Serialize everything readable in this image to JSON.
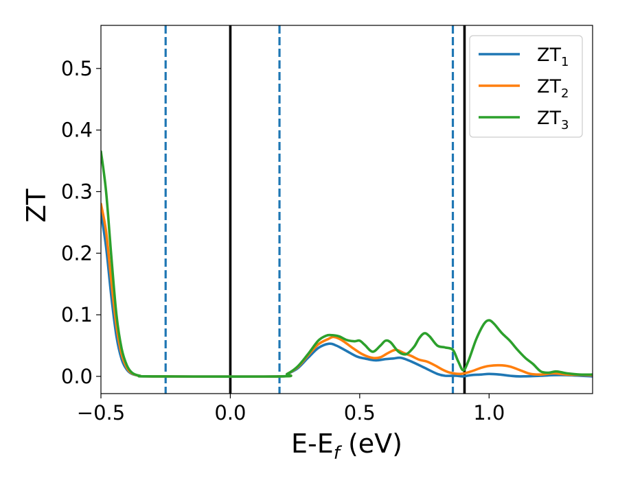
{
  "chart_data": {
    "type": "line",
    "xlabel": {
      "main": "E-E",
      "sub": "f",
      "unit": " (eV)"
    },
    "ylabel": "ZT",
    "xlim": [
      -0.5,
      1.4
    ],
    "ylim": [
      -0.028,
      0.57
    ],
    "xticks": [
      {
        "value": -0.5,
        "label": "−0.5"
      },
      {
        "value": 0.0,
        "label": "0.0"
      },
      {
        "value": 0.5,
        "label": "0.5"
      },
      {
        "value": 1.0,
        "label": "1.0"
      }
    ],
    "yticks": [
      {
        "value": 0.0,
        "label": "0.0"
      },
      {
        "value": 0.1,
        "label": "0.1"
      },
      {
        "value": 0.2,
        "label": "0.2"
      },
      {
        "value": 0.3,
        "label": "0.3"
      },
      {
        "value": 0.4,
        "label": "0.4"
      },
      {
        "value": 0.5,
        "label": "0.5"
      }
    ],
    "grid": false,
    "legend_position": "top-right",
    "vlines": [
      {
        "x": -0.25,
        "style": "dashed",
        "color": "#1f77b4"
      },
      {
        "x": 0.0,
        "style": "solid",
        "color": "#000000"
      },
      {
        "x": 0.19,
        "style": "dashed",
        "color": "#1f77b4"
      },
      {
        "x": 0.86,
        "style": "dashed",
        "color": "#1f77b4"
      },
      {
        "x": 0.905,
        "style": "solid",
        "color": "#000000"
      }
    ],
    "series": [
      {
        "name": "ZT",
        "name_sub": "1",
        "color": "#1f77b4",
        "points": [
          [
            -0.5,
            0.265
          ],
          [
            -0.48,
            0.21
          ],
          [
            -0.46,
            0.13
          ],
          [
            -0.44,
            0.065
          ],
          [
            -0.42,
            0.028
          ],
          [
            -0.4,
            0.011
          ],
          [
            -0.38,
            0.004
          ],
          [
            -0.35,
            0.001
          ],
          [
            -0.3,
            0.0
          ],
          [
            0.19,
            0.0
          ],
          [
            0.22,
            0.004
          ],
          [
            0.26,
            0.013
          ],
          [
            0.3,
            0.03
          ],
          [
            0.34,
            0.046
          ],
          [
            0.38,
            0.053
          ],
          [
            0.41,
            0.05
          ],
          [
            0.45,
            0.041
          ],
          [
            0.49,
            0.032
          ],
          [
            0.52,
            0.029
          ],
          [
            0.56,
            0.026
          ],
          [
            0.6,
            0.028
          ],
          [
            0.63,
            0.029
          ],
          [
            0.66,
            0.03
          ],
          [
            0.7,
            0.024
          ],
          [
            0.75,
            0.014
          ],
          [
            0.8,
            0.004
          ],
          [
            0.83,
            0.001
          ],
          [
            0.87,
            0.001
          ],
          [
            0.9,
            0.0
          ],
          [
            0.93,
            0.002
          ],
          [
            0.97,
            0.003
          ],
          [
            1.0,
            0.004
          ],
          [
            1.04,
            0.003
          ],
          [
            1.08,
            0.001
          ],
          [
            1.12,
            0.0
          ],
          [
            1.2,
            0.001
          ],
          [
            1.25,
            0.002
          ],
          [
            1.3,
            0.002
          ],
          [
            1.4,
            0.0
          ]
        ]
      },
      {
        "name": "ZT",
        "name_sub": "2",
        "color": "#ff7f0e",
        "points": [
          [
            -0.5,
            0.28
          ],
          [
            -0.48,
            0.235
          ],
          [
            -0.46,
            0.155
          ],
          [
            -0.44,
            0.082
          ],
          [
            -0.42,
            0.036
          ],
          [
            -0.4,
            0.014
          ],
          [
            -0.38,
            0.005
          ],
          [
            -0.35,
            0.001
          ],
          [
            -0.3,
            0.0
          ],
          [
            0.19,
            0.0
          ],
          [
            0.22,
            0.004
          ],
          [
            0.26,
            0.015
          ],
          [
            0.3,
            0.034
          ],
          [
            0.34,
            0.052
          ],
          [
            0.38,
            0.061
          ],
          [
            0.4,
            0.064
          ],
          [
            0.43,
            0.059
          ],
          [
            0.47,
            0.047
          ],
          [
            0.51,
            0.036
          ],
          [
            0.55,
            0.03
          ],
          [
            0.58,
            0.031
          ],
          [
            0.61,
            0.038
          ],
          [
            0.64,
            0.043
          ],
          [
            0.67,
            0.038
          ],
          [
            0.7,
            0.033
          ],
          [
            0.73,
            0.027
          ],
          [
            0.76,
            0.024
          ],
          [
            0.79,
            0.018
          ],
          [
            0.82,
            0.011
          ],
          [
            0.85,
            0.006
          ],
          [
            0.89,
            0.004
          ],
          [
            0.93,
            0.008
          ],
          [
            0.97,
            0.014
          ],
          [
            1.0,
            0.017
          ],
          [
            1.04,
            0.018
          ],
          [
            1.08,
            0.016
          ],
          [
            1.12,
            0.01
          ],
          [
            1.16,
            0.004
          ],
          [
            1.2,
            0.003
          ],
          [
            1.25,
            0.005
          ],
          [
            1.3,
            0.003
          ],
          [
            1.4,
            0.002
          ]
        ]
      },
      {
        "name": "ZT",
        "name_sub": "3",
        "color": "#2ca02c",
        "points": [
          [
            -0.5,
            0.365
          ],
          [
            -0.48,
            0.3
          ],
          [
            -0.46,
            0.195
          ],
          [
            -0.44,
            0.1
          ],
          [
            -0.42,
            0.045
          ],
          [
            -0.4,
            0.018
          ],
          [
            -0.38,
            0.006
          ],
          [
            -0.35,
            0.001
          ],
          [
            -0.3,
            0.0
          ],
          [
            0.19,
            0.0
          ],
          [
            0.22,
            0.004
          ],
          [
            0.26,
            0.016
          ],
          [
            0.3,
            0.036
          ],
          [
            0.34,
            0.058
          ],
          [
            0.37,
            0.066
          ],
          [
            0.39,
            0.067
          ],
          [
            0.42,
            0.065
          ],
          [
            0.45,
            0.059
          ],
          [
            0.48,
            0.057
          ],
          [
            0.5,
            0.058
          ],
          [
            0.52,
            0.051
          ],
          [
            0.55,
            0.04
          ],
          [
            0.58,
            0.05
          ],
          [
            0.6,
            0.058
          ],
          [
            0.62,
            0.055
          ],
          [
            0.65,
            0.04
          ],
          [
            0.68,
            0.036
          ],
          [
            0.71,
            0.048
          ],
          [
            0.73,
            0.062
          ],
          [
            0.75,
            0.07
          ],
          [
            0.77,
            0.065
          ],
          [
            0.8,
            0.05
          ],
          [
            0.83,
            0.047
          ],
          [
            0.86,
            0.043
          ],
          [
            0.88,
            0.025
          ],
          [
            0.9,
            0.01
          ],
          [
            0.92,
            0.025
          ],
          [
            0.95,
            0.06
          ],
          [
            0.98,
            0.085
          ],
          [
            1.0,
            0.091
          ],
          [
            1.02,
            0.085
          ],
          [
            1.05,
            0.07
          ],
          [
            1.08,
            0.058
          ],
          [
            1.11,
            0.043
          ],
          [
            1.14,
            0.03
          ],
          [
            1.17,
            0.02
          ],
          [
            1.2,
            0.008
          ],
          [
            1.23,
            0.006
          ],
          [
            1.26,
            0.008
          ],
          [
            1.3,
            0.005
          ],
          [
            1.35,
            0.003
          ],
          [
            1.4,
            0.003
          ]
        ]
      }
    ]
  }
}
